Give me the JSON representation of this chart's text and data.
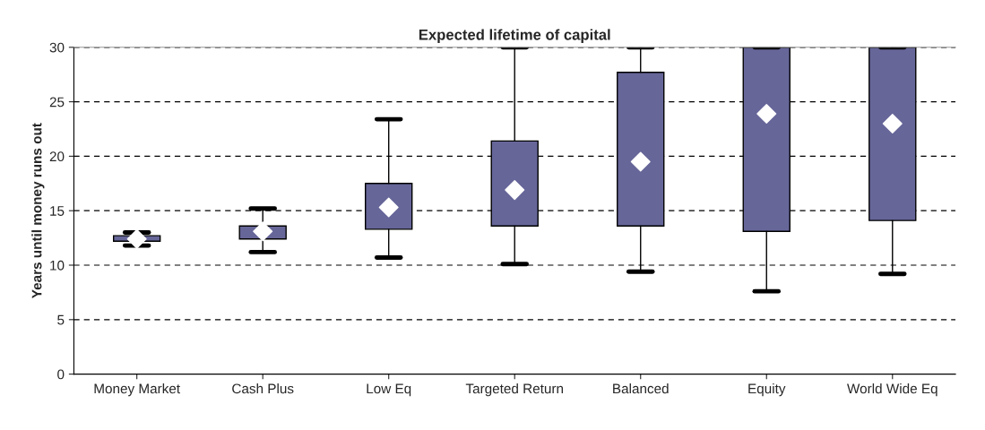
{
  "chart_data": {
    "type": "box",
    "title": "Expected lifetime of capital",
    "ylabel": "Years until money runs out",
    "categories": [
      "Money Market",
      "Cash Plus",
      "Low Eq",
      "Targeted Return",
      "Balanced",
      "Equity",
      "World Wide Eq"
    ],
    "boxes": [
      {
        "low": 11.8,
        "q1": 12.2,
        "median": 12.4,
        "q3": 12.7,
        "high": 13.0
      },
      {
        "low": 11.2,
        "q1": 12.4,
        "median": 13.1,
        "q3": 13.6,
        "high": 15.2
      },
      {
        "low": 10.7,
        "q1": 13.3,
        "median": 15.3,
        "q3": 17.5,
        "high": 23.4
      },
      {
        "low": 10.1,
        "q1": 13.6,
        "median": 16.9,
        "q3": 21.4,
        "high": 30
      },
      {
        "low": 9.4,
        "q1": 13.6,
        "median": 19.5,
        "q3": 27.7,
        "high": 30
      },
      {
        "low": 7.6,
        "q1": 13.1,
        "median": 23.9,
        "q3": 30,
        "high": 30
      },
      {
        "low": 9.2,
        "q1": 14.1,
        "median": 23.0,
        "q3": 30,
        "high": 30
      }
    ],
    "color": "#666699",
    "ylim": [
      0,
      30
    ],
    "yticks": [
      0,
      5,
      10,
      15,
      20,
      25,
      30
    ],
    "grid": "y",
    "line_style": "dashed",
    "marker": "diamond"
  }
}
